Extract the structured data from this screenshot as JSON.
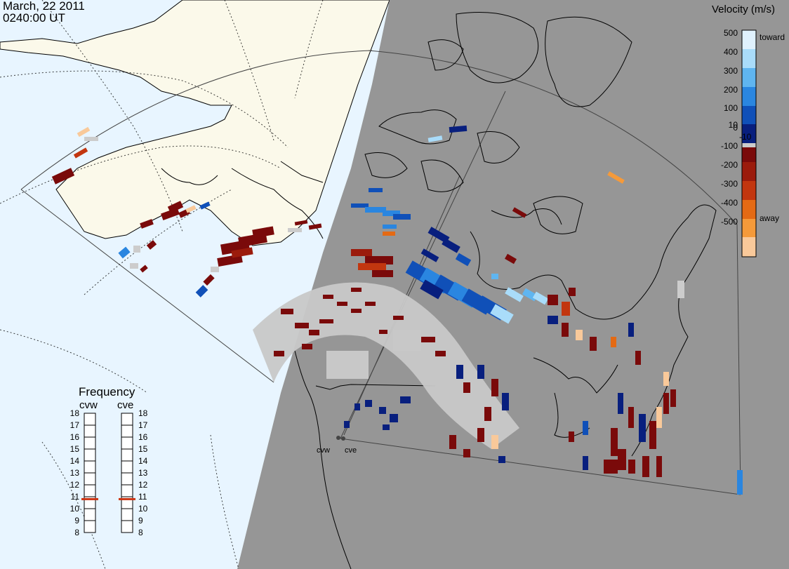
{
  "header": {
    "date": "March, 22 2011",
    "time": "0240:00 UT"
  },
  "colorbar": {
    "title": "Velocity (m/s)",
    "tick_labels": [
      "500",
      "400",
      "300",
      "200",
      "100",
      "10",
      "0",
      "-10",
      "-100",
      "-200",
      "-300",
      "-400",
      "-500"
    ],
    "toward_label": "toward",
    "away_label": "away",
    "colors": [
      "#dff1fd",
      "#a9dcfa",
      "#5fb5f0",
      "#2a86e0",
      "#1050b8",
      "#081f7e",
      "#cccccc",
      "#7a0a0a",
      "#9b1b0c",
      "#c2360f",
      "#e46a14",
      "#f59a3a",
      "#f9c99a"
    ]
  },
  "frequency_panel": {
    "title": "Frequency",
    "radars": [
      {
        "name": "cvw",
        "marker_mhz": 10.8
      },
      {
        "name": "cve",
        "marker_mhz": 10.8
      }
    ],
    "scale": [
      "18",
      "17",
      "16",
      "15",
      "14",
      "13",
      "12",
      "11",
      "10",
      "9",
      "8"
    ],
    "marker_color": "#cc3311"
  },
  "sites": [
    {
      "code": "cvw"
    },
    {
      "code": "cve"
    }
  ],
  "colors": {
    "night_shade": "#969696",
    "ocean": "#e8f5ff",
    "land_day": "#fbf9ea",
    "ground_scatter": "#c8c8c8"
  }
}
